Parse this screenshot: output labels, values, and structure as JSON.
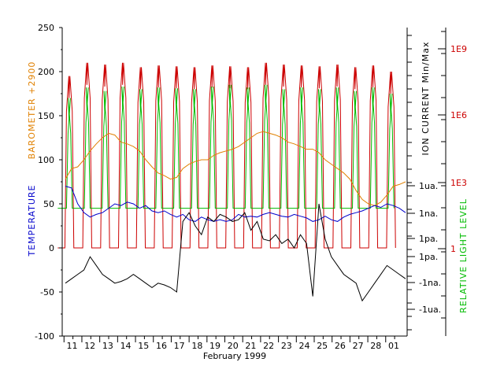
{
  "chart_data": {
    "type": "line",
    "xlabel": "February 1999",
    "x_ticks": [
      "11",
      "12",
      "13",
      "14",
      "15",
      "16",
      "17",
      "18",
      "19",
      "20",
      "21",
      "22",
      "23",
      "24",
      "25",
      "26",
      "27",
      "28",
      "01"
    ],
    "left_axis": {
      "ylim": [
        -100,
        250
      ],
      "ticks": [
        "250",
        "200",
        "150",
        "100",
        "50",
        "0",
        "-50",
        "-100"
      ],
      "labels": [
        {
          "text": "BAROMETER +2900",
          "color": "#e08000"
        },
        {
          "text": "TEMPERATURE",
          "color": "#0000cc"
        }
      ]
    },
    "right_inner_axis": {
      "label": "ION CURRENT  Min/Max",
      "ticks": [
        "1ua.",
        "1na.",
        "1pa.",
        "1pa.",
        "-1na.",
        "-1ua."
      ]
    },
    "right_outer_axis": {
      "label": "RELATIVE LIGHT LEVEL",
      "label_color": "#00bb00",
      "ticks": [
        "1E9",
        "1E6",
        "1E3",
        "1"
      ],
      "tick_color": "#cc0000"
    },
    "series": [
      {
        "color": "#e08000",
        "values": [
          78,
          90,
          92,
          100,
          110,
          118,
          125,
          130,
          128,
          120,
          118,
          115,
          110,
          100,
          92,
          85,
          82,
          78,
          80,
          90,
          95,
          98,
          100,
          100,
          105,
          108,
          110,
          112,
          115,
          120,
          125,
          130,
          132,
          130,
          128,
          125,
          120,
          118,
          115,
          112,
          112,
          108,
          100,
          95,
          90,
          85,
          78,
          65,
          55,
          50,
          48,
          52,
          60,
          70,
          72,
          75
        ]
      },
      {
        "color": "#0000cc",
        "values": [
          70,
          68,
          50,
          40,
          35,
          38,
          40,
          45,
          50,
          48,
          52,
          50,
          45,
          48,
          42,
          40,
          42,
          38,
          35,
          38,
          32,
          30,
          35,
          32,
          30,
          32,
          30,
          32,
          38,
          35,
          36,
          35,
          38,
          40,
          38,
          36,
          35,
          38,
          36,
          34,
          30,
          32,
          36,
          32,
          30,
          35,
          38,
          40,
          42,
          45,
          48,
          46,
          50,
          48,
          45,
          40
        ]
      },
      {
        "color": "#000000",
        "values": [
          -40,
          -35,
          -30,
          -25,
          -10,
          -20,
          -30,
          -35,
          -40,
          -38,
          -35,
          -30,
          -35,
          -40,
          -45,
          -40,
          -42,
          -45,
          -50,
          30,
          40,
          25,
          15,
          35,
          30,
          38,
          35,
          30,
          32,
          40,
          20,
          30,
          10,
          8,
          15,
          5,
          10,
          0,
          15,
          5,
          -55,
          50,
          10,
          -10,
          -20,
          -30,
          -35,
          -40,
          -60,
          -50,
          -40,
          -30,
          -20,
          -25,
          -30,
          -35
        ]
      }
    ],
    "oscillating_series": [
      {
        "color": "#cc0000",
        "daily_high": [
          195,
          210,
          208,
          210,
          205,
          207,
          206,
          205,
          207,
          206,
          205,
          210,
          208,
          207,
          206,
          208,
          205,
          207,
          200
        ],
        "daily_low": 0
      },
      {
        "color": "#00bb00",
        "daily_high": [
          170,
          182,
          178,
          183,
          180,
          182,
          181,
          180,
          183,
          185,
          182,
          185,
          180,
          182,
          180,
          182,
          178,
          182,
          175
        ],
        "daily_low": 45
      }
    ]
  }
}
